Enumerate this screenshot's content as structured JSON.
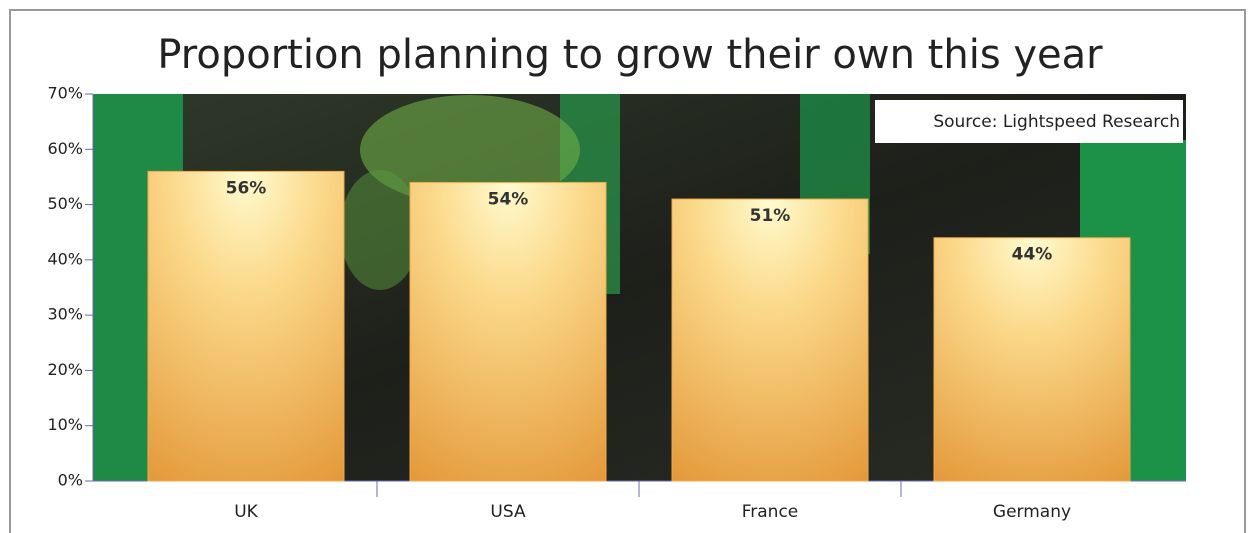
{
  "chart_data": {
    "type": "bar",
    "title": "Proportion planning to grow their own this year",
    "annotation": "Source: Lightspeed Research",
    "categories": [
      "UK",
      "USA",
      "France",
      "Germany"
    ],
    "values": [
      56,
      54,
      51,
      44
    ],
    "value_labels": [
      "56%",
      "54%",
      "51%",
      "44%"
    ],
    "color": "#f0a84a",
    "ylim": [
      0,
      70
    ],
    "yticks": [
      {
        "value": 0,
        "label": "0%"
      },
      {
        "value": 10,
        "label": "10%"
      },
      {
        "value": 20,
        "label": "20%"
      },
      {
        "value": 30,
        "label": "30%"
      },
      {
        "value": 40,
        "label": "40%"
      },
      {
        "value": 50,
        "label": "50%"
      },
      {
        "value": 60,
        "label": "60%"
      },
      {
        "value": 70,
        "label": "70%"
      }
    ],
    "grid": false
  }
}
